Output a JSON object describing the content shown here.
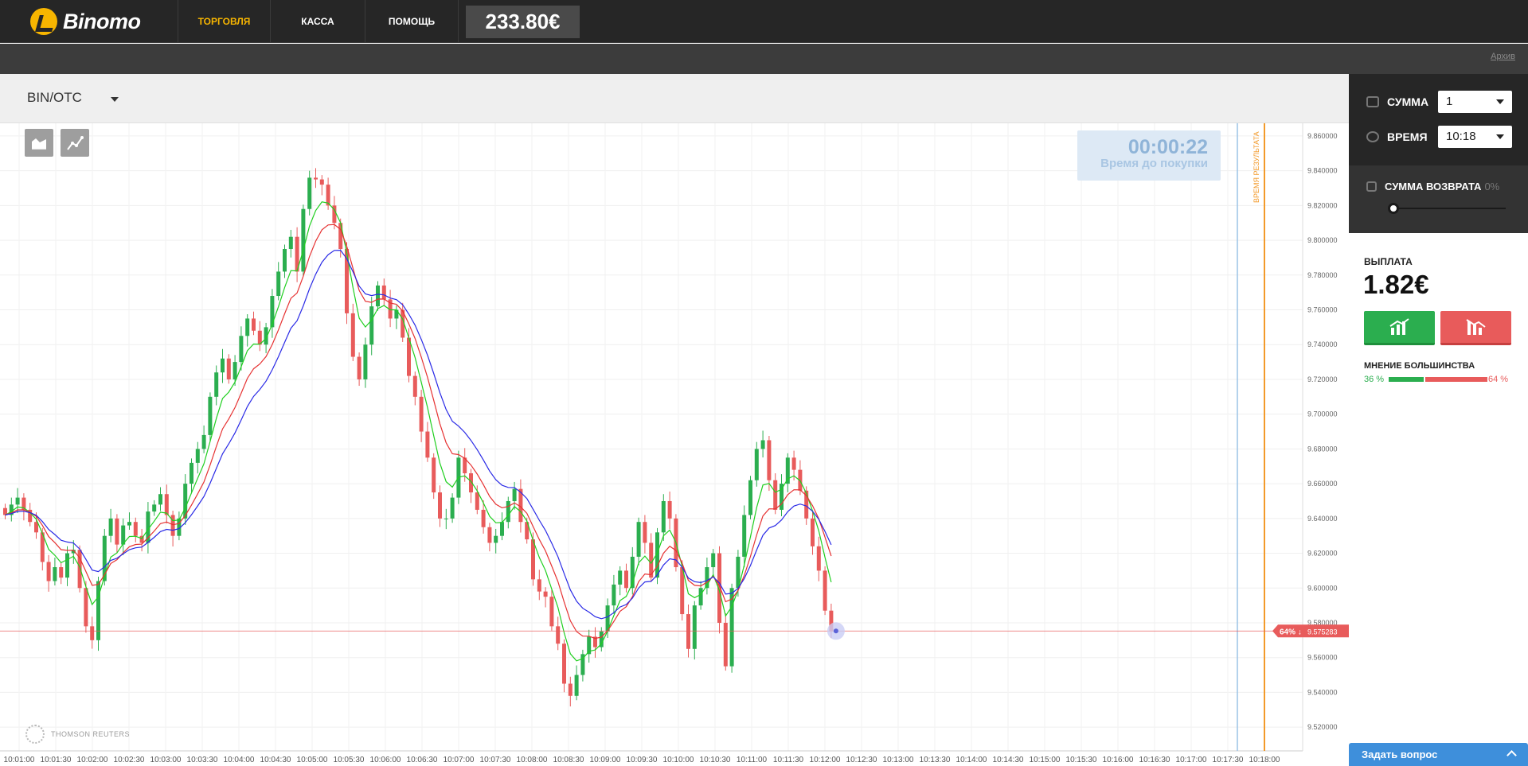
{
  "brand": {
    "name": "Binomo"
  },
  "nav": {
    "trading": "ТОРГОВЛЯ",
    "cashier": "КАССА",
    "help": "ПОМОЩЬ",
    "balance": "233.80€"
  },
  "subbar": {
    "archive": "Архив"
  },
  "asset": {
    "selected": "BIN/OTC"
  },
  "timer": {
    "time": "00:00:22",
    "label": "Время до покупки"
  },
  "chart": {
    "provider": "THOMSON REUTERS",
    "result_line_label": "ВРЕМЯ РЕЗУЛЬТАТА",
    "price_tag_pct": "64% ↓",
    "price_tag_value": "9.575283"
  },
  "panel": {
    "amount_label": "СУММА",
    "amount_value": "1",
    "time_label": "ВРЕМЯ",
    "time_value": "10:18",
    "refund_label": "СУММА ВОЗВРАТА",
    "refund_value": "0%",
    "payout_label": "ВЫПЛАТА",
    "payout_value": "1.82€",
    "opinion_label": "МНЕНИЕ БОЛЬШИНСТВА",
    "opinion_up": "36 %",
    "opinion_down": "64 %",
    "ask_question": "Задать вопрос"
  },
  "colors": {
    "up": "#2bae4f",
    "down": "#e85b5b",
    "ema_fast": "#1fcf1f",
    "ema_mid": "#e63232",
    "ema_slow": "#2a2ae6",
    "accent": "#f7b500"
  },
  "chart_data": {
    "type": "candlestick",
    "y_ticks": [
      "9.860000",
      "9.840000",
      "9.820000",
      "9.800000",
      "9.780000",
      "9.760000",
      "9.740000",
      "9.720000",
      "9.700000",
      "9.680000",
      "9.660000",
      "9.640000",
      "9.620000",
      "9.600000",
      "9.580000",
      "9.560000",
      "9.540000",
      "9.520000"
    ],
    "ylim": [
      9.51,
      9.865
    ],
    "x_ticks": [
      "10:01:00",
      "10:01:30",
      "10:02:00",
      "10:02:30",
      "10:03:00",
      "10:03:30",
      "10:04:00",
      "10:04:30",
      "10:05:00",
      "10:05:30",
      "10:06:00",
      "10:06:30",
      "10:07:00",
      "10:07:30",
      "10:08:00",
      "10:08:30",
      "10:09:00",
      "10:09:30",
      "10:10:00",
      "10:10:30",
      "10:11:00",
      "10:11:30",
      "10:12:00",
      "10:12:30",
      "10:13:00",
      "10:13:30",
      "10:14:00",
      "10:14:30",
      "10:15:00",
      "10:15:30",
      "10:16:00",
      "10:16:30",
      "10:17:00",
      "10:17:30",
      "10:18:00"
    ],
    "purchase_deadline": "10:17:30",
    "result_time": "10:18:00",
    "current_price": 9.575283,
    "closes": [
      9.642,
      9.648,
      9.652,
      9.645,
      9.638,
      9.632,
      9.615,
      9.604,
      9.612,
      9.606,
      9.62,
      9.622,
      9.6,
      9.578,
      9.57,
      9.604,
      9.63,
      9.64,
      9.625,
      9.636,
      9.638,
      9.63,
      9.626,
      9.644,
      9.648,
      9.654,
      9.642,
      9.63,
      9.64,
      9.66,
      9.672,
      9.68,
      9.688,
      9.71,
      9.724,
      9.732,
      9.72,
      9.73,
      9.745,
      9.755,
      9.748,
      9.74,
      9.75,
      9.768,
      9.782,
      9.795,
      9.802,
      9.782,
      9.818,
      9.836,
      9.835,
      9.832,
      9.82,
      9.81,
      9.795,
      9.758,
      9.733,
      9.72,
      9.74,
      9.762,
      9.774,
      9.766,
      9.755,
      9.76,
      9.744,
      9.722,
      9.71,
      9.69,
      9.675,
      9.655,
      9.64,
      9.64,
      9.652,
      9.675,
      9.666,
      9.655,
      9.645,
      9.635,
      9.626,
      9.63,
      9.638,
      9.65,
      9.657,
      9.638,
      9.628,
      9.605,
      9.598,
      9.595,
      9.578,
      9.568,
      9.545,
      9.538,
      9.55,
      9.562,
      9.572,
      9.566,
      9.575,
      9.59,
      9.602,
      9.61,
      9.6,
      9.618,
      9.638,
      9.626,
      9.606,
      9.632,
      9.65,
      9.64,
      9.612,
      9.585,
      9.565,
      9.59,
      9.6,
      9.612,
      9.62,
      9.58,
      9.555,
      9.6,
      9.618,
      9.642,
      9.662,
      9.68,
      9.685,
      9.662,
      9.645,
      9.66,
      9.675,
      9.668,
      9.656,
      9.64,
      9.624,
      9.61,
      9.587,
      9.575
    ],
    "ema_fast_end": 9.646,
    "ema_mid_end": 9.646,
    "ema_slow_end": 9.636
  }
}
